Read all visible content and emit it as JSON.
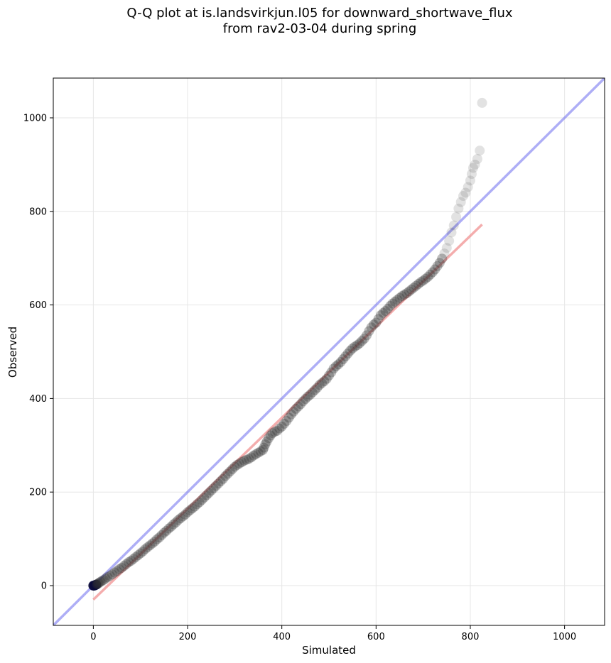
{
  "chart_data": {
    "type": "scatter",
    "title_line1": "Q-Q plot at is.landsvirkjun.l05 for downward_shortwave_flux",
    "title_line2": "from rav2-03-04 during spring",
    "xlabel": "Simulated",
    "ylabel": "Observed",
    "xlim": [
      -85,
      1085
    ],
    "ylim": [
      -85,
      1085
    ],
    "xticks": [
      0,
      200,
      400,
      600,
      800,
      1000
    ],
    "yticks": [
      0,
      200,
      400,
      600,
      800,
      1000
    ],
    "grid": true,
    "identity_line": {
      "color": "#6b6bef",
      "from": [
        -85,
        -85
      ],
      "to": [
        1085,
        1085
      ]
    },
    "fit_line": {
      "color": "#f08a8a",
      "from": [
        0,
        -30
      ],
      "to": [
        825,
        772
      ]
    },
    "points": [
      [
        0,
        0
      ],
      [
        2,
        0
      ],
      [
        4,
        1
      ],
      [
        6,
        2
      ],
      [
        8,
        3
      ],
      [
        10,
        4
      ],
      [
        12,
        6
      ],
      [
        15,
        8
      ],
      [
        18,
        10
      ],
      [
        22,
        12
      ],
      [
        26,
        15
      ],
      [
        30,
        18
      ],
      [
        35,
        21
      ],
      [
        40,
        24
      ],
      [
        45,
        28
      ],
      [
        50,
        31
      ],
      [
        55,
        35
      ],
      [
        60,
        38
      ],
      [
        65,
        42
      ],
      [
        70,
        46
      ],
      [
        75,
        50
      ],
      [
        80,
        53
      ],
      [
        85,
        57
      ],
      [
        90,
        61
      ],
      [
        95,
        65
      ],
      [
        100,
        69
      ],
      [
        105,
        73
      ],
      [
        110,
        78
      ],
      [
        115,
        82
      ],
      [
        120,
        86
      ],
      [
        125,
        90
      ],
      [
        130,
        94
      ],
      [
        135,
        99
      ],
      [
        140,
        103
      ],
      [
        145,
        108
      ],
      [
        150,
        113
      ],
      [
        155,
        117
      ],
      [
        160,
        122
      ],
      [
        165,
        126
      ],
      [
        170,
        131
      ],
      [
        175,
        135
      ],
      [
        180,
        140
      ],
      [
        185,
        144
      ],
      [
        190,
        148
      ],
      [
        195,
        152
      ],
      [
        200,
        157
      ],
      [
        205,
        161
      ],
      [
        210,
        165
      ],
      [
        215,
        169
      ],
      [
        220,
        174
      ],
      [
        225,
        178
      ],
      [
        230,
        183
      ],
      [
        235,
        188
      ],
      [
        240,
        193
      ],
      [
        245,
        198
      ],
      [
        250,
        203
      ],
      [
        255,
        208
      ],
      [
        260,
        213
      ],
      [
        265,
        218
      ],
      [
        270,
        223
      ],
      [
        275,
        228
      ],
      [
        280,
        234
      ],
      [
        285,
        239
      ],
      [
        290,
        244
      ],
      [
        295,
        249
      ],
      [
        300,
        254
      ],
      [
        305,
        258
      ],
      [
        310,
        261
      ],
      [
        315,
        264
      ],
      [
        320,
        267
      ],
      [
        325,
        269
      ],
      [
        330,
        271
      ],
      [
        335,
        274
      ],
      [
        340,
        278
      ],
      [
        345,
        281
      ],
      [
        350,
        284
      ],
      [
        355,
        287
      ],
      [
        360,
        290
      ],
      [
        362,
        295
      ],
      [
        365,
        302
      ],
      [
        368,
        308
      ],
      [
        372,
        315
      ],
      [
        376,
        321
      ],
      [
        380,
        326
      ],
      [
        385,
        329
      ],
      [
        390,
        331
      ],
      [
        395,
        336
      ],
      [
        400,
        340
      ],
      [
        405,
        346
      ],
      [
        410,
        352
      ],
      [
        415,
        359
      ],
      [
        420,
        366
      ],
      [
        425,
        372
      ],
      [
        430,
        378
      ],
      [
        435,
        383
      ],
      [
        440,
        388
      ],
      [
        445,
        394
      ],
      [
        450,
        399
      ],
      [
        455,
        404
      ],
      [
        460,
        408
      ],
      [
        465,
        413
      ],
      [
        470,
        418
      ],
      [
        475,
        423
      ],
      [
        480,
        429
      ],
      [
        485,
        433
      ],
      [
        490,
        437
      ],
      [
        495,
        442
      ],
      [
        500,
        449
      ],
      [
        505,
        456
      ],
      [
        510,
        464
      ],
      [
        515,
        469
      ],
      [
        520,
        473
      ],
      [
        525,
        478
      ],
      [
        530,
        484
      ],
      [
        535,
        490
      ],
      [
        540,
        496
      ],
      [
        545,
        502
      ],
      [
        550,
        507
      ],
      [
        555,
        511
      ],
      [
        560,
        514
      ],
      [
        565,
        518
      ],
      [
        570,
        523
      ],
      [
        575,
        528
      ],
      [
        580,
        535
      ],
      [
        585,
        544
      ],
      [
        590,
        552
      ],
      [
        595,
        558
      ],
      [
        600,
        562
      ],
      [
        605,
        570
      ],
      [
        610,
        578
      ],
      [
        615,
        583
      ],
      [
        620,
        587
      ],
      [
        625,
        592
      ],
      [
        630,
        598
      ],
      [
        635,
        603
      ],
      [
        640,
        607
      ],
      [
        645,
        611
      ],
      [
        650,
        615
      ],
      [
        655,
        619
      ],
      [
        660,
        622
      ],
      [
        665,
        625
      ],
      [
        670,
        629
      ],
      [
        675,
        633
      ],
      [
        680,
        637
      ],
      [
        685,
        641
      ],
      [
        690,
        645
      ],
      [
        695,
        649
      ],
      [
        700,
        652
      ],
      [
        705,
        656
      ],
      [
        710,
        660
      ],
      [
        715,
        665
      ],
      [
        720,
        670
      ],
      [
        725,
        676
      ],
      [
        730,
        683
      ],
      [
        735,
        690
      ],
      [
        740,
        699
      ],
      [
        745,
        710
      ],
      [
        750,
        722
      ],
      [
        755,
        737
      ],
      [
        760,
        755
      ],
      [
        765,
        770
      ],
      [
        770,
        788
      ],
      [
        775,
        806
      ],
      [
        780,
        820
      ],
      [
        785,
        833
      ],
      [
        790,
        840
      ],
      [
        795,
        852
      ],
      [
        800,
        866
      ],
      [
        803,
        880
      ],
      [
        806,
        893
      ],
      [
        810,
        900
      ],
      [
        815,
        912
      ],
      [
        820,
        930
      ],
      [
        825,
        1032
      ]
    ]
  }
}
